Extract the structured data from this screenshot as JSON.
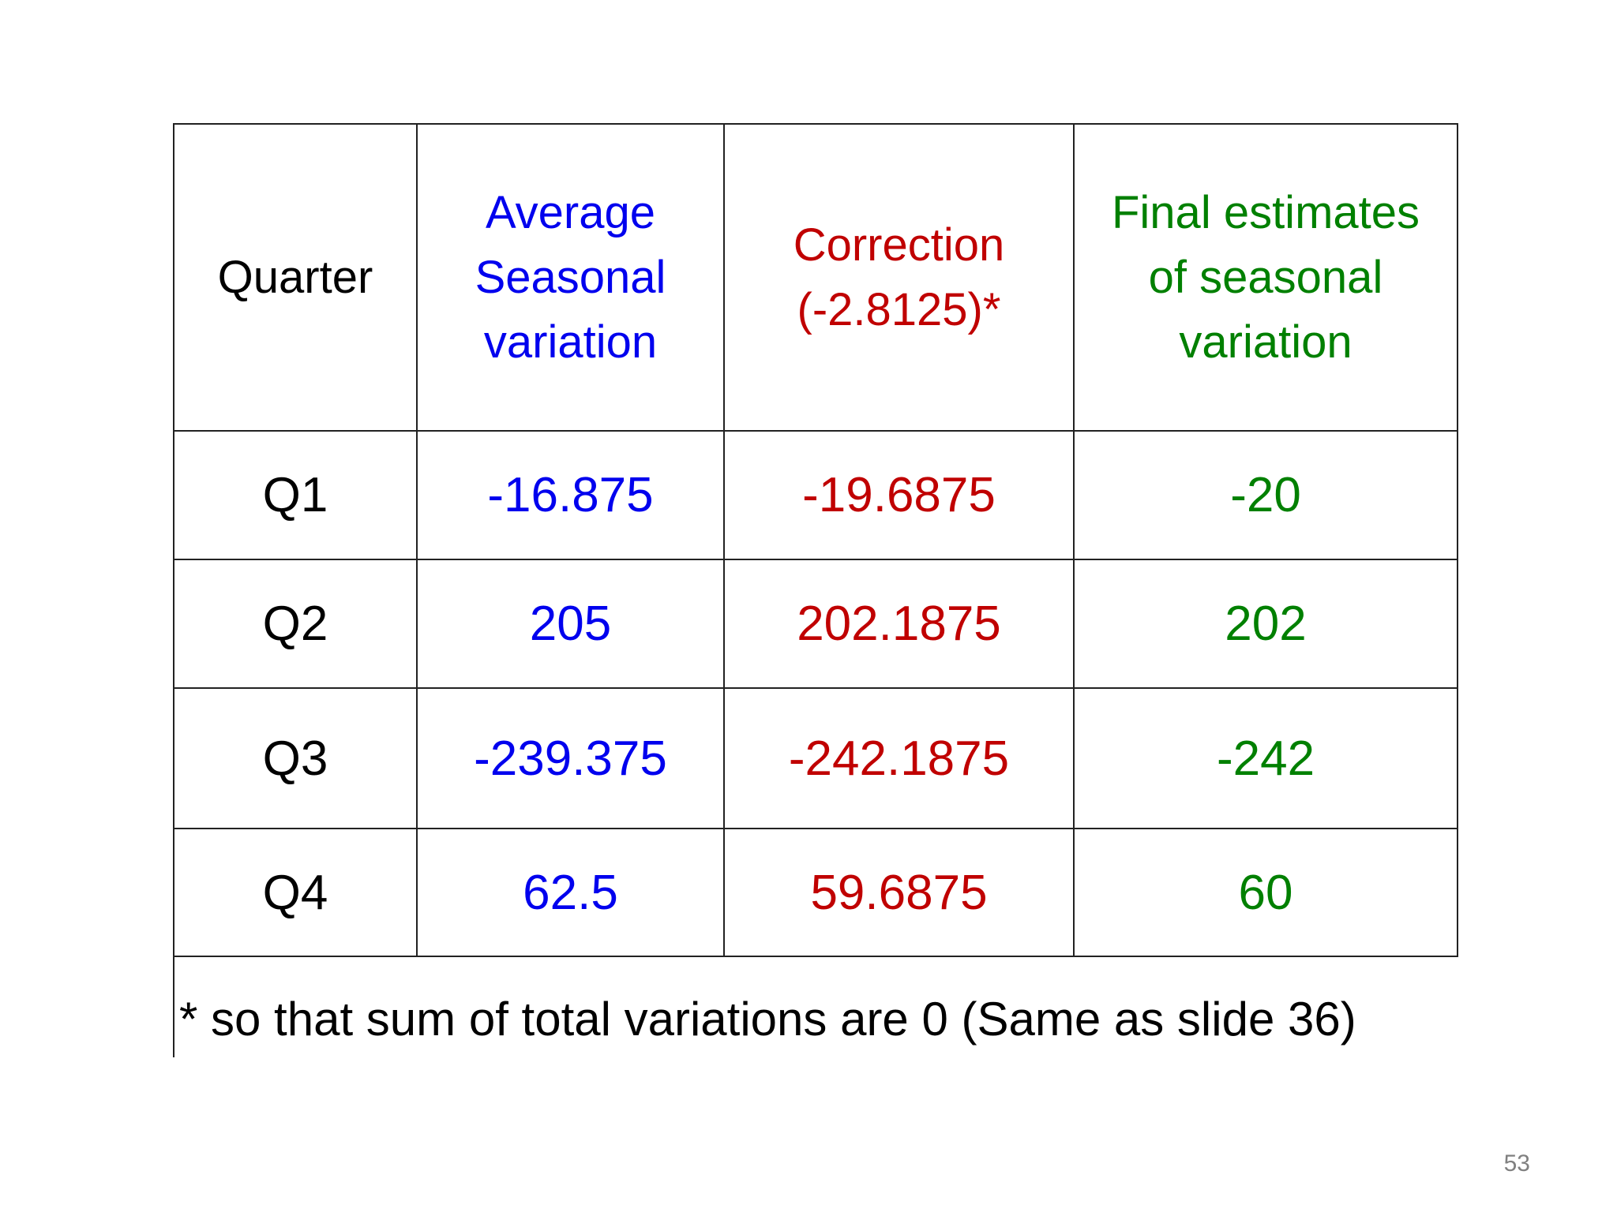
{
  "colors": {
    "quarter": "#000000",
    "average": "#0000ee",
    "correction": "#c00000",
    "final": "#008000",
    "page_number": "#808080"
  },
  "table": {
    "headers": {
      "quarter": "Quarter",
      "average": [
        "Average",
        "Seasonal",
        "variation"
      ],
      "correction": [
        "Correction",
        "(-2.8125)*"
      ],
      "final": [
        "Final estimates",
        "of seasonal",
        "variation"
      ]
    },
    "rows": [
      {
        "quarter": "Q1",
        "average": "-16.875",
        "correction": "-19.6875",
        "final": "-20"
      },
      {
        "quarter": "Q2",
        "average": "205",
        "correction": "202.1875",
        "final": "202"
      },
      {
        "quarter": "Q3",
        "average": "-239.375",
        "correction": "-242.1875",
        "final": "-242"
      },
      {
        "quarter": "Q4",
        "average": "62.5",
        "correction": "59.6875",
        "final": "60"
      }
    ]
  },
  "footnote": "* so that sum of total variations are 0 (Same as slide 36)",
  "page_number": "53"
}
